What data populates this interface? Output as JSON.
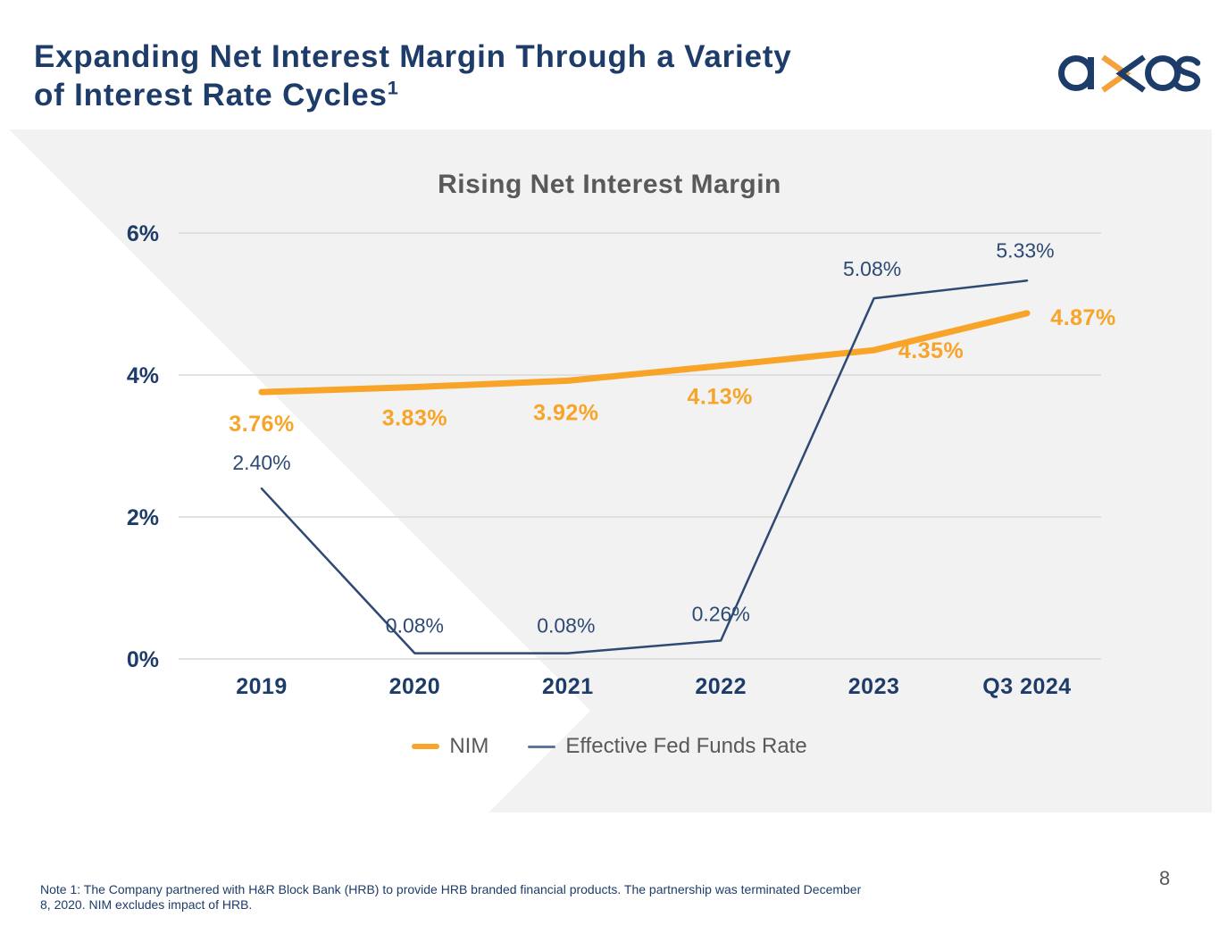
{
  "header": {
    "title_line1": "Expanding Net Interest Margin Through a Variety",
    "title_line2": "of Interest Rate Cycles",
    "title_superscript": "1",
    "logo_name": "axos"
  },
  "colors": {
    "navy": "#1E3C69",
    "orange": "#F7A428",
    "fed_line": "#2E4A74",
    "legend_fed_swatch": "#5B779C",
    "gray_text": "#595959",
    "band_bg": "#F2F2F2",
    "gridline": "#D9D9D9"
  },
  "chart_data": {
    "type": "line",
    "title": "Rising Net Interest Margin",
    "categories": [
      "2019",
      "2020",
      "2021",
      "2022",
      "2023",
      "Q3 2024"
    ],
    "series": [
      {
        "name": "NIM",
        "color": "#F7A428",
        "values": [
          3.76,
          3.83,
          3.92,
          4.13,
          4.35,
          4.87
        ],
        "labels": [
          "3.76%",
          "3.83%",
          "3.92%",
          "4.13%",
          "4.35%",
          "4.87%"
        ]
      },
      {
        "name": "Effective Fed Funds Rate",
        "color": "#2E4A74",
        "values": [
          2.4,
          0.08,
          0.08,
          0.26,
          5.08,
          5.33
        ],
        "labels": [
          "2.40%",
          "0.08%",
          "0.08%",
          "0.26%",
          "5.08%",
          "5.33%"
        ]
      }
    ],
    "y_ticks": [
      "0%",
      "2%",
      "4%",
      "6%"
    ],
    "y_tick_values": [
      0,
      2,
      4,
      6
    ],
    "ylim": [
      0,
      6.3
    ],
    "xlabel": "",
    "ylabel": "",
    "grid": true,
    "legend_position": "bottom"
  },
  "note": {
    "line1": "Note 1: The Company partnered with H&R Block Bank (HRB) to provide HRB branded financial products. The partnership was terminated December",
    "line2": "8, 2020. NIM excludes impact of HRB."
  },
  "page_number": "8"
}
